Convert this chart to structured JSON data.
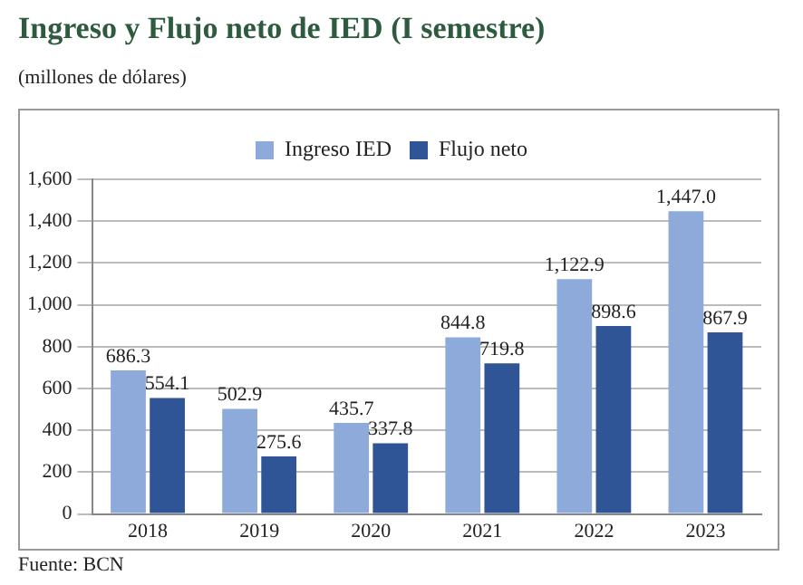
{
  "chart_data": {
    "type": "bar",
    "title": "Ingreso y Flujo neto de IED (I semestre)",
    "ylabel": "(millones de dólares)",
    "categories": [
      "2018",
      "2019",
      "2020",
      "2021",
      "2022",
      "2023"
    ],
    "series": [
      {
        "name": "Ingreso IED",
        "color": "#8eaadb",
        "values": [
          686.3,
          502.9,
          435.7,
          844.8,
          1122.9,
          1447.0
        ],
        "value_labels": [
          "686.3",
          "502.9",
          "435.7",
          "844.8",
          "1,122.9",
          "1,447.0"
        ]
      },
      {
        "name": "Flujo neto",
        "color": "#2f5597",
        "values": [
          554.1,
          275.6,
          337.8,
          719.8,
          898.6,
          867.9
        ],
        "value_labels": [
          "554.1",
          "275.6",
          "337.8",
          "719.8",
          "898.6",
          "867.9"
        ]
      }
    ],
    "ylim": [
      0,
      1600
    ],
    "yticks": [
      0,
      200,
      400,
      600,
      800,
      {
        "value": 1000,
        "label": "1,000"
      },
      {
        "value": 1200,
        "label": "1,200"
      },
      {
        "value": 1400,
        "label": "1,400"
      },
      {
        "value": 1600,
        "label": "1,600"
      }
    ],
    "grid": "y",
    "legend": "top",
    "annotations": [
      "Fuente: BCN"
    ]
  }
}
